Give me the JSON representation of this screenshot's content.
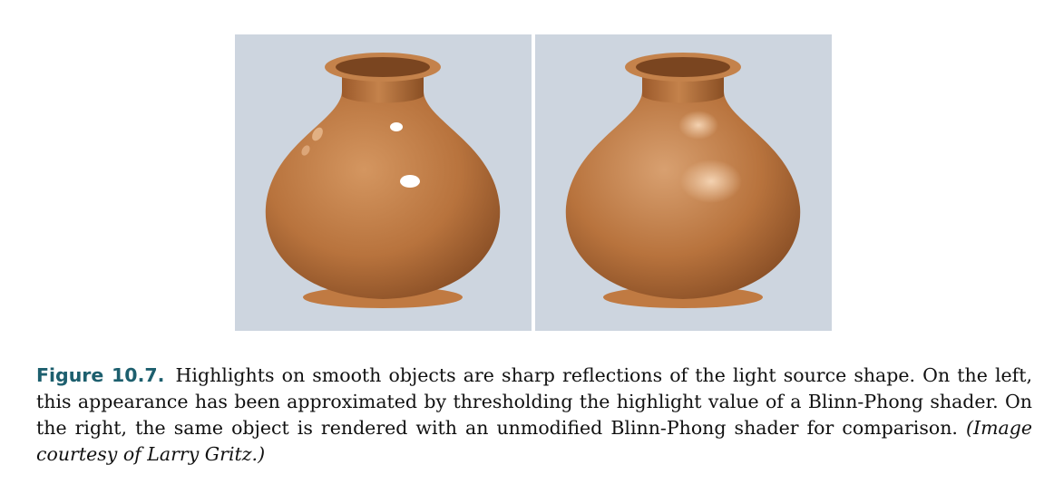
{
  "figure": {
    "panels": [
      {
        "name": "thresholded-highlight-vase"
      },
      {
        "name": "unmodified-blinn-phong-vase"
      }
    ],
    "colors": {
      "background": "#cdd5df",
      "vase_mid": "#b8733d",
      "vase_dark": "#8a4f24",
      "vase_light": "#d79a63"
    }
  },
  "caption": {
    "label": "Figure 10.7.",
    "text": "Highlights on smooth objects are sharp reflections of the light source shape. On the left, this appearance has been approximated by thresholding the highlight value of a Blinn-Phong shader. On the right, the same object is rendered with an unmodified Blinn-Phong shader for comparison.",
    "credit": "(Image courtesy of Larry Gritz.)"
  }
}
